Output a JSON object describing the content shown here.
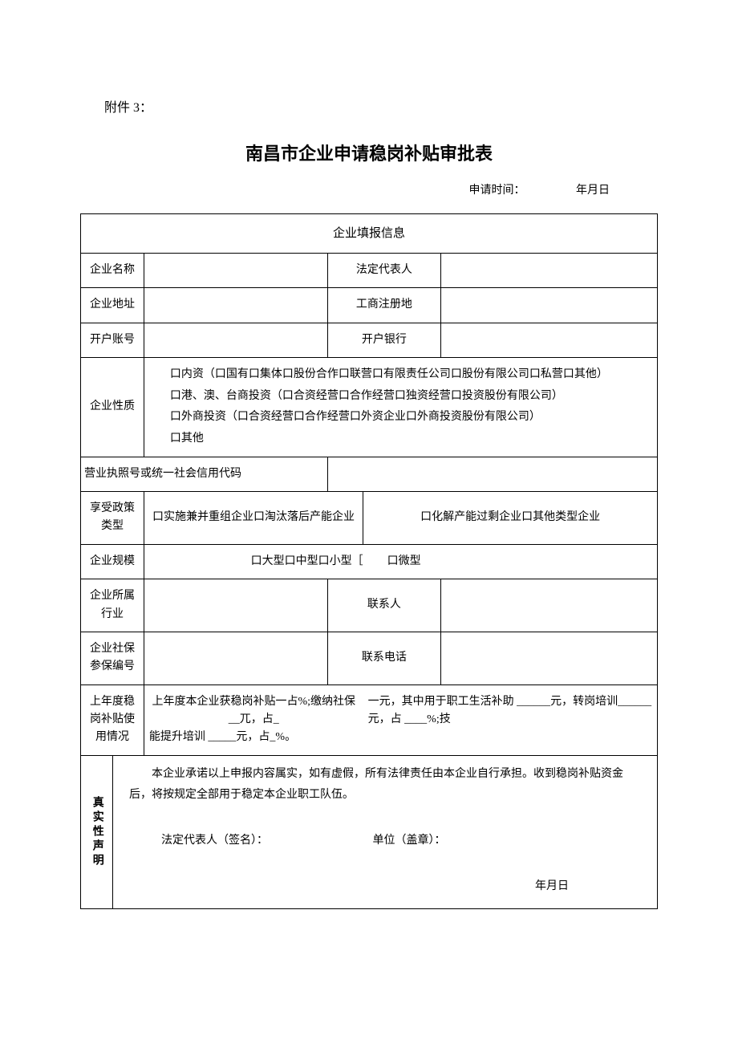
{
  "attachment_label": "附件 3：",
  "form_title": "南昌市企业申请稳岗补贴审批表",
  "apply_time": {
    "label": "申请时间：",
    "value": "年月日"
  },
  "section_header": "企业填报信息",
  "rows": {
    "company_name": {
      "label": "企业名称",
      "mid": "法定代表人"
    },
    "company_address": {
      "label": "企业地址",
      "mid": "工商注册地"
    },
    "bank_account": {
      "label": "开户账号",
      "mid": "开户银行"
    },
    "nature": {
      "label": "企业性质",
      "line1": "　　口内资（口国有口集体口股份合作口联营口有限责任公司口股份有限公司口私营口其他）",
      "line2": "　　口港、澳、台商投资（口合资经营口合作经营口独资经营口投资股份有限公司）",
      "line3": "　　口外商投资（口合资经营口合作经营口外资企业口外商投资股份有限公司）",
      "line4": "　　口其他"
    },
    "license": {
      "label": "营业执照号或统一社会信用代码"
    },
    "policy_type": {
      "label": "享受政策类型",
      "col1": "口实施兼并重组企业口淘汰落后产能企业",
      "col2": "口化解产能过剩企业口其他类型企业"
    },
    "scale": {
      "label": "企业规模",
      "left": "口大型口中型口小型［",
      "right": "口微型"
    },
    "industry": {
      "label": "企业所属行业",
      "mid": "联系人"
    },
    "social_ins": {
      "label": "企业社保参保编号",
      "mid": "联系电话"
    },
    "usage": {
      "label": "上年度稳岗补贴使用情况",
      "left_text": "上年度本企业获稳岗补贴一占%;缴纳社保__兀，占_",
      "right_text": "一元，其中用于职工生活补助 ______元，转岗培训______元，占 ____%;技",
      "bottom_text": "能提升培训 _____元，占_%。"
    },
    "declaration": {
      "label": "真实性声明",
      "intro": "本企业承诺以上申报内容属实，如有虚假，所有法律责任由本企业自行承担。收到稳岗补贴资金后，将按规定全部用于稳定本企业职工队伍。",
      "sig1": "法定代表人（签名）：",
      "sig2": "单位（盖章）：",
      "date": "年月日"
    }
  }
}
